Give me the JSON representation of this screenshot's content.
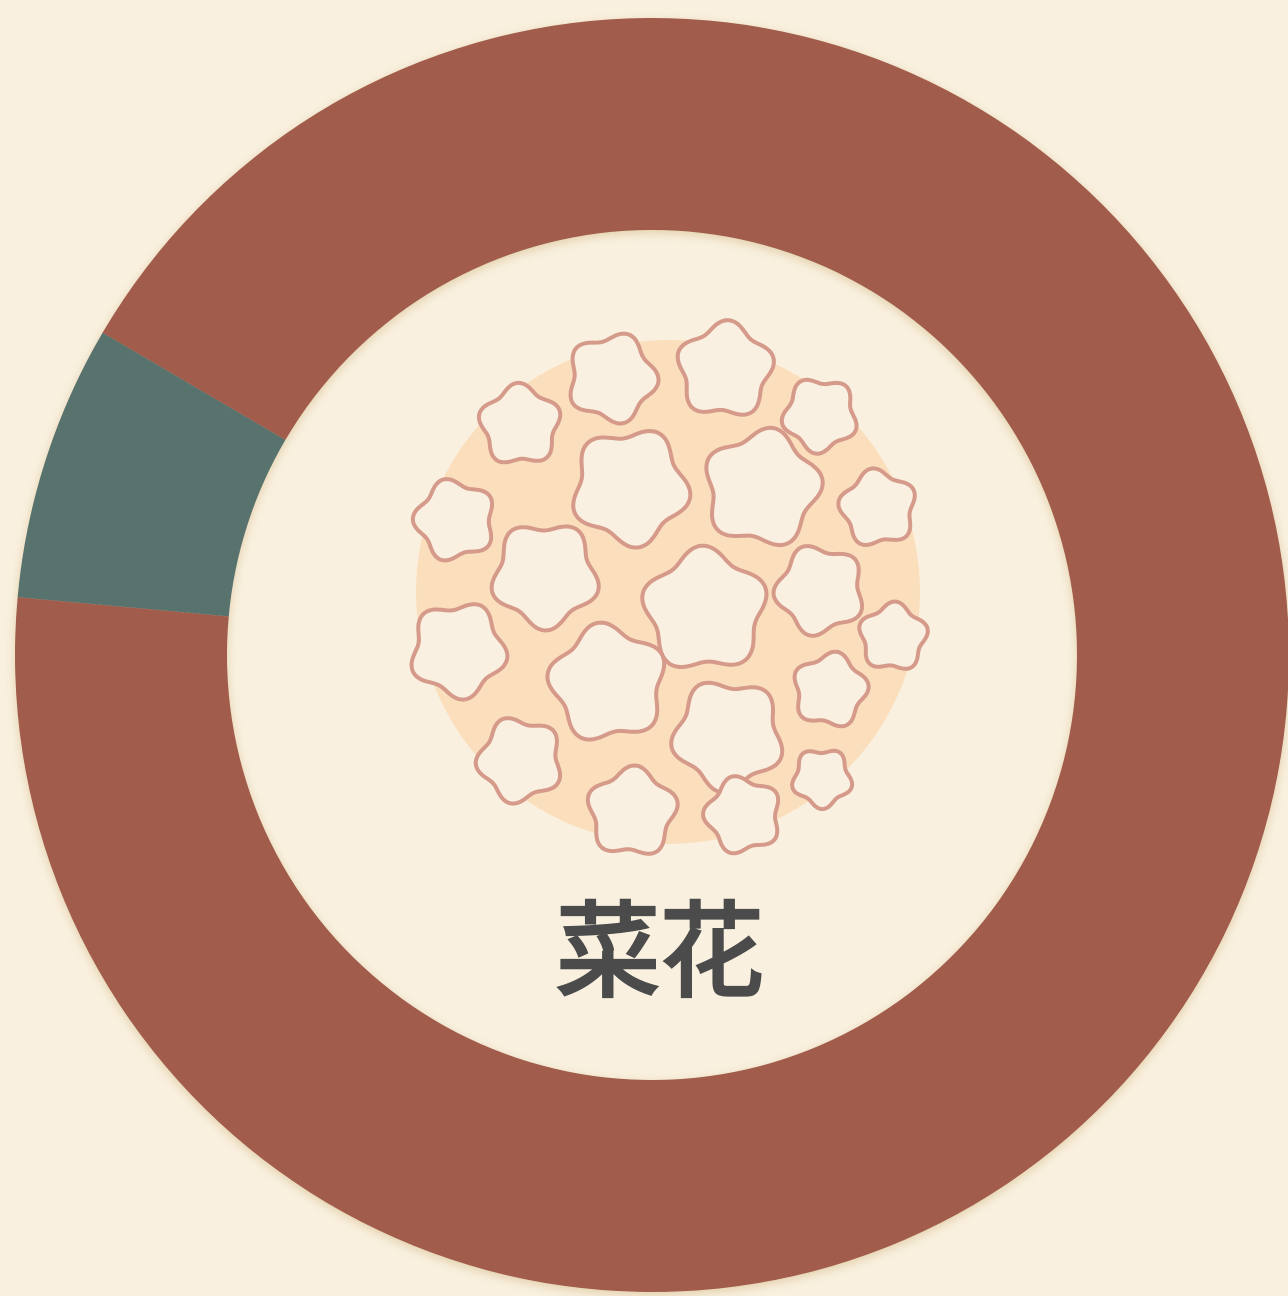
{
  "chart_data": {
    "type": "donut",
    "title": "菜花",
    "categories": [
      null,
      null
    ],
    "values": [
      7,
      93
    ],
    "colors": [
      "#58736e",
      "#a15b4b"
    ]
  }
}
